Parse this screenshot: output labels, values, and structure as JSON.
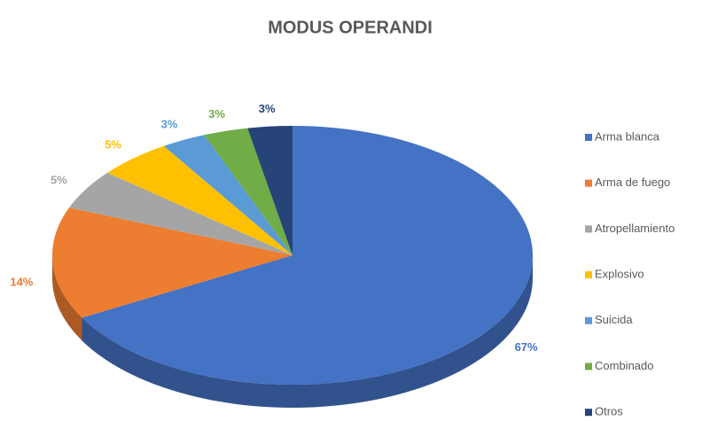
{
  "chart_data": {
    "type": "pie",
    "title": "MODUS OPERANDI",
    "categories": [
      "Arma blanca",
      "Arma de fuego",
      "Atropellamiento",
      "Explosivo",
      "Suicida",
      "Combinado",
      "Otros"
    ],
    "values": [
      67,
      14,
      5,
      5,
      3,
      3,
      3
    ],
    "value_labels": [
      "67%",
      "14%",
      "5%",
      "5%",
      "3%",
      "3%",
      "3%"
    ],
    "colors": [
      "#4472c4",
      "#ed7d31",
      "#a5a5a5",
      "#ffc000",
      "#5b9bd5",
      "#70ad47",
      "#264478"
    ],
    "legend": "right"
  }
}
